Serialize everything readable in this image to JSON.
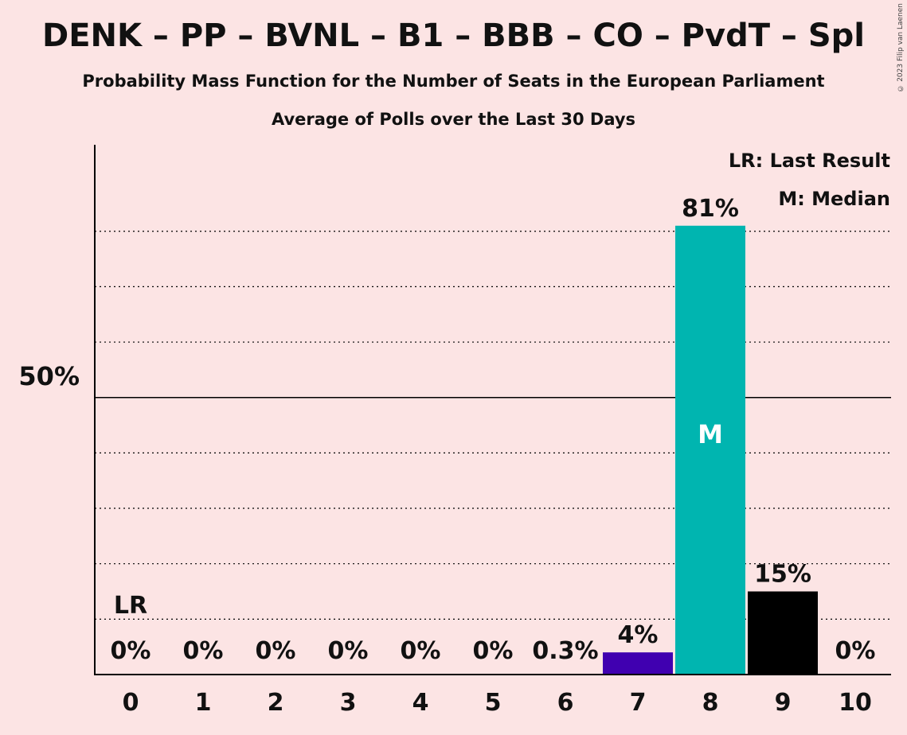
{
  "title": "DENK – PP – BVNL – B1 – BBB – CO – PvdT – Spl",
  "subtitle": "Probability Mass Function for the Number of Seats in the European Parliament",
  "subtitle2": "Average of Polls over the Last 30 Days",
  "copyright": "© 2023 Filip van Laenen",
  "legend": {
    "last_result": "LR: Last Result",
    "median": "M: Median"
  },
  "chart_data": {
    "type": "bar",
    "categories": [
      "0",
      "1",
      "2",
      "3",
      "4",
      "5",
      "6",
      "7",
      "8",
      "9",
      "10"
    ],
    "values": [
      0,
      0,
      0,
      0,
      0,
      0,
      0.3,
      4,
      81,
      15,
      0
    ],
    "labels": [
      "0%",
      "0%",
      "0%",
      "0%",
      "0%",
      "0%",
      "0.3%",
      "4%",
      "81%",
      "15%",
      "0%"
    ],
    "colors": [
      "#000000",
      "#000000",
      "#000000",
      "#000000",
      "#000000",
      "#000000",
      "#000000",
      "#4000b0",
      "#00b5b0",
      "#000000",
      "#000000"
    ],
    "ylim": [
      0,
      88
    ],
    "ytick_label": "50%",
    "ytick_value": 50,
    "gridlines": [
      10,
      20,
      30,
      40,
      50,
      60,
      70,
      80
    ],
    "last_result_category": "0",
    "last_result_marker": "LR",
    "median_category": "8",
    "median_marker": "M"
  }
}
